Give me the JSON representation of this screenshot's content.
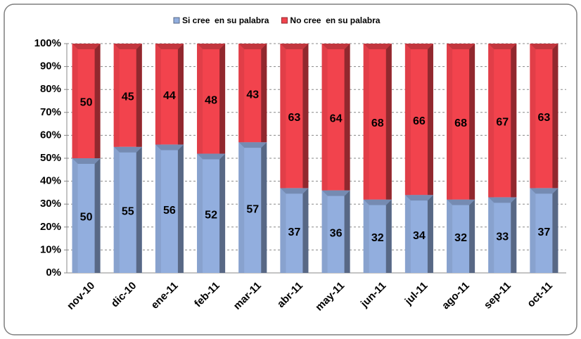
{
  "chart_data": {
    "type": "bar",
    "stacked": true,
    "categories": [
      "nov-10",
      "dic-10",
      "ene-11",
      "feb-11",
      "mar-11",
      "abr-11",
      "may-11",
      "jun-11",
      "jul-11",
      "ago-11",
      "sep-11",
      "oct-11"
    ],
    "series": [
      {
        "name": "Si cree  en su palabra",
        "color": "#92aede",
        "values": [
          50,
          55,
          56,
          52,
          57,
          37,
          36,
          32,
          34,
          32,
          33,
          37
        ]
      },
      {
        "name": "No cree  en su palabra",
        "color": "#f2434d",
        "values": [
          50,
          45,
          44,
          48,
          43,
          63,
          64,
          68,
          66,
          68,
          67,
          63
        ]
      }
    ],
    "ylim": [
      0,
      100
    ],
    "yticks": [
      {
        "value": 0,
        "label": "0%"
      },
      {
        "value": 10,
        "label": "10%"
      },
      {
        "value": 20,
        "label": "20%"
      },
      {
        "value": 30,
        "label": "30%"
      },
      {
        "value": 40,
        "label": "40%"
      },
      {
        "value": 50,
        "label": "50%"
      },
      {
        "value": 60,
        "label": "60%"
      },
      {
        "value": 70,
        "label": "70%"
      },
      {
        "value": 80,
        "label": "80%"
      },
      {
        "value": 90,
        "label": "90%"
      },
      {
        "value": 100,
        "label": "100%"
      }
    ],
    "grid": true,
    "legend": "top"
  }
}
